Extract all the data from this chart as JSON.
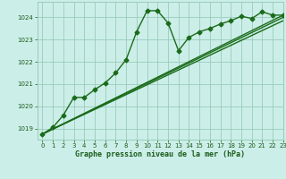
{
  "title": "Graphe pression niveau de la mer (hPa)",
  "background_color": "#cceee8",
  "grid_color": "#99ccbb",
  "line_color": "#1a6b1a",
  "text_color": "#1a5c1a",
  "xlim": [
    -0.5,
    23
  ],
  "ylim": [
    1018.5,
    1024.7
  ],
  "yticks": [
    1019,
    1020,
    1021,
    1022,
    1023,
    1024
  ],
  "xticks": [
    0,
    1,
    2,
    3,
    4,
    5,
    6,
    7,
    8,
    9,
    10,
    11,
    12,
    13,
    14,
    15,
    16,
    17,
    18,
    19,
    20,
    21,
    22,
    23
  ],
  "series_main": {
    "x": [
      0,
      1,
      2,
      3,
      4,
      5,
      6,
      7,
      8,
      9,
      10,
      11,
      12,
      13,
      14,
      15,
      16,
      17,
      18,
      19,
      20,
      21,
      22,
      23
    ],
    "y": [
      1018.75,
      1019.05,
      1019.6,
      1020.4,
      1020.4,
      1020.75,
      1021.05,
      1021.5,
      1022.1,
      1023.35,
      1024.3,
      1024.3,
      1023.75,
      1022.5,
      1023.1,
      1023.35,
      1023.5,
      1023.7,
      1023.85,
      1024.05,
      1023.95,
      1024.25,
      1024.1,
      1024.1
    ]
  },
  "series_linear": [
    {
      "x": [
        0,
        23
      ],
      "y": [
        1018.75,
        1024.1
      ]
    },
    {
      "x": [
        0,
        23
      ],
      "y": [
        1018.75,
        1024.0
      ]
    },
    {
      "x": [
        0,
        23
      ],
      "y": [
        1018.75,
        1023.85
      ]
    }
  ]
}
